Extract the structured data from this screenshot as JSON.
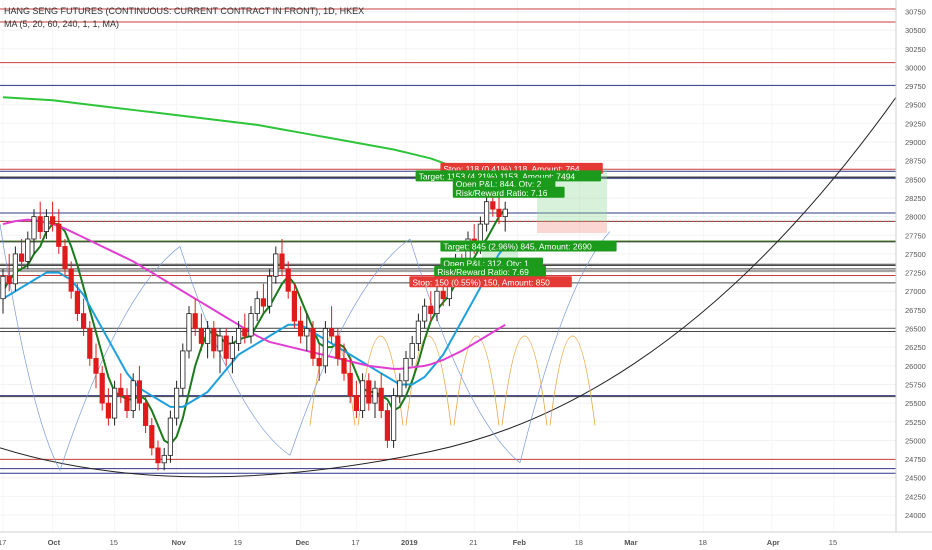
{
  "header": {
    "title": "HANG SENG FUTURES (CONTINUOUS: CURRENT CONTRACT IN FRONT), 1D, HKEX",
    "indicator": "MA (5, 20, 60, 240, 1, 1, MA)"
  },
  "chart_data": {
    "type": "candlestick",
    "ylim": [
      23800,
      30900
    ],
    "y_ticks": [
      24000,
      24250,
      24500,
      24750,
      25000,
      25250,
      25500,
      25750,
      26000,
      26250,
      26500,
      26750,
      27000,
      27250,
      27500,
      27750,
      28000,
      28250,
      28500,
      28750,
      29000,
      29250,
      29500,
      29750,
      30000,
      30250,
      30500,
      30750
    ],
    "y_tick_labels": [
      "24000",
      "24250",
      "24500",
      "24750",
      "25000",
      "25250",
      "25500",
      "25750",
      "26000",
      "26250",
      "26500",
      "26750",
      "27000",
      "27250",
      "27500",
      "27750",
      "28000",
      "28250",
      "28500",
      "28750",
      "29000",
      "29250",
      "29500",
      "29750",
      "30000",
      "30250",
      "30500",
      "30750"
    ],
    "x_labels": [
      "17",
      "Oct",
      "15",
      "Nov",
      "19",
      "Dec",
      "17",
      "2019",
      "21",
      "Feb",
      "18",
      "Mar",
      "18",
      "Apr",
      "15"
    ],
    "x_label_bars": [
      0,
      8,
      18,
      28,
      38,
      48,
      57,
      65,
      76,
      83,
      93,
      101,
      113,
      124,
      134
    ],
    "x_bold_labels": [
      "Oct",
      "Nov",
      "Dec",
      "2019",
      "Feb",
      "Mar",
      "Apr"
    ],
    "candles": [
      {
        "o": 26900,
        "h": 27300,
        "l": 26700,
        "c": 27200
      },
      {
        "o": 27200,
        "h": 27500,
        "l": 27000,
        "c": 27100
      },
      {
        "o": 27100,
        "h": 27600,
        "l": 27000,
        "c": 27500
      },
      {
        "o": 27500,
        "h": 27700,
        "l": 27300,
        "c": 27400
      },
      {
        "o": 27400,
        "h": 27800,
        "l": 27300,
        "c": 27700
      },
      {
        "o": 27700,
        "h": 28100,
        "l": 27500,
        "c": 28000
      },
      {
        "o": 28000,
        "h": 28200,
        "l": 27700,
        "c": 27800
      },
      {
        "o": 27800,
        "h": 28100,
        "l": 27700,
        "c": 28000
      },
      {
        "o": 28000,
        "h": 28200,
        "l": 27800,
        "c": 27900
      },
      {
        "o": 27900,
        "h": 28100,
        "l": 27500,
        "c": 27600
      },
      {
        "o": 27600,
        "h": 27700,
        "l": 27200,
        "c": 27300
      },
      {
        "o": 27300,
        "h": 27400,
        "l": 26900,
        "c": 27000
      },
      {
        "o": 27000,
        "h": 27100,
        "l": 26600,
        "c": 26700
      },
      {
        "o": 26700,
        "h": 26900,
        "l": 26400,
        "c": 26500
      },
      {
        "o": 26500,
        "h": 26600,
        "l": 26000,
        "c": 26100
      },
      {
        "o": 26100,
        "h": 26300,
        "l": 25700,
        "c": 25900
      },
      {
        "o": 25900,
        "h": 26000,
        "l": 25400,
        "c": 25500
      },
      {
        "o": 25500,
        "h": 25700,
        "l": 25200,
        "c": 25300
      },
      {
        "o": 25300,
        "h": 25800,
        "l": 25200,
        "c": 25700
      },
      {
        "o": 25700,
        "h": 25900,
        "l": 25500,
        "c": 25600
      },
      {
        "o": 25600,
        "h": 25700,
        "l": 25300,
        "c": 25400
      },
      {
        "o": 25400,
        "h": 25900,
        "l": 25300,
        "c": 25800
      },
      {
        "o": 25800,
        "h": 26000,
        "l": 25400,
        "c": 25500
      },
      {
        "o": 25500,
        "h": 25600,
        "l": 25100,
        "c": 25200
      },
      {
        "o": 25200,
        "h": 25300,
        "l": 24800,
        "c": 24900
      },
      {
        "o": 24900,
        "h": 25000,
        "l": 24600,
        "c": 24700
      },
      {
        "o": 24700,
        "h": 24900,
        "l": 24600,
        "c": 24800
      },
      {
        "o": 24800,
        "h": 25400,
        "l": 24700,
        "c": 25300
      },
      {
        "o": 25300,
        "h": 25800,
        "l": 25200,
        "c": 25700
      },
      {
        "o": 25700,
        "h": 26300,
        "l": 25600,
        "c": 26200
      },
      {
        "o": 26200,
        "h": 26800,
        "l": 26100,
        "c": 26700
      },
      {
        "o": 26700,
        "h": 26900,
        "l": 26400,
        "c": 26500
      },
      {
        "o": 26500,
        "h": 26700,
        "l": 26200,
        "c": 26300
      },
      {
        "o": 26300,
        "h": 26600,
        "l": 26100,
        "c": 26500
      },
      {
        "o": 26500,
        "h": 26600,
        "l": 26100,
        "c": 26200
      },
      {
        "o": 26200,
        "h": 26500,
        "l": 25900,
        "c": 26400
      },
      {
        "o": 26400,
        "h": 26500,
        "l": 26000,
        "c": 26100
      },
      {
        "o": 26100,
        "h": 26400,
        "l": 25900,
        "c": 26300
      },
      {
        "o": 26300,
        "h": 26600,
        "l": 26200,
        "c": 26500
      },
      {
        "o": 26500,
        "h": 26700,
        "l": 26300,
        "c": 26400
      },
      {
        "o": 26400,
        "h": 26800,
        "l": 26300,
        "c": 26700
      },
      {
        "o": 26700,
        "h": 27000,
        "l": 26600,
        "c": 26900
      },
      {
        "o": 26900,
        "h": 27100,
        "l": 26700,
        "c": 26800
      },
      {
        "o": 26800,
        "h": 27300,
        "l": 26700,
        "c": 27200
      },
      {
        "o": 27200,
        "h": 27600,
        "l": 27100,
        "c": 27500
      },
      {
        "o": 27500,
        "h": 27700,
        "l": 27200,
        "c": 27300
      },
      {
        "o": 27300,
        "h": 27400,
        "l": 26900,
        "c": 27000
      },
      {
        "o": 27000,
        "h": 27100,
        "l": 26500,
        "c": 26600
      },
      {
        "o": 26600,
        "h": 26800,
        "l": 26300,
        "c": 26400
      },
      {
        "o": 26400,
        "h": 26700,
        "l": 26200,
        "c": 26500
      },
      {
        "o": 26500,
        "h": 26600,
        "l": 26000,
        "c": 26100
      },
      {
        "o": 26100,
        "h": 26300,
        "l": 25800,
        "c": 26000
      },
      {
        "o": 26000,
        "h": 26600,
        "l": 25900,
        "c": 26500
      },
      {
        "o": 26500,
        "h": 26800,
        "l": 26300,
        "c": 26400
      },
      {
        "o": 26400,
        "h": 26500,
        "l": 26000,
        "c": 26100
      },
      {
        "o": 26100,
        "h": 26300,
        "l": 25800,
        "c": 25900
      },
      {
        "o": 25900,
        "h": 26100,
        "l": 25500,
        "c": 25600
      },
      {
        "o": 25600,
        "h": 25800,
        "l": 25300,
        "c": 25400
      },
      {
        "o": 25400,
        "h": 25900,
        "l": 25300,
        "c": 25800
      },
      {
        "o": 25800,
        "h": 25900,
        "l": 25400,
        "c": 25500
      },
      {
        "o": 25500,
        "h": 25800,
        "l": 25300,
        "c": 25700
      },
      {
        "o": 25700,
        "h": 25900,
        "l": 25300,
        "c": 25400
      },
      {
        "o": 25400,
        "h": 25500,
        "l": 24900,
        "c": 25000
      },
      {
        "o": 25000,
        "h": 25700,
        "l": 24900,
        "c": 25600
      },
      {
        "o": 25600,
        "h": 25900,
        "l": 25500,
        "c": 25800
      },
      {
        "o": 25800,
        "h": 26200,
        "l": 25700,
        "c": 26100
      },
      {
        "o": 26100,
        "h": 26400,
        "l": 26000,
        "c": 26300
      },
      {
        "o": 26300,
        "h": 26700,
        "l": 26200,
        "c": 26600
      },
      {
        "o": 26600,
        "h": 26900,
        "l": 26500,
        "c": 26800
      },
      {
        "o": 26800,
        "h": 27000,
        "l": 26600,
        "c": 26700
      },
      {
        "o": 26700,
        "h": 27100,
        "l": 26600,
        "c": 27000
      },
      {
        "o": 27000,
        "h": 27200,
        "l": 26800,
        "c": 26900
      },
      {
        "o": 26900,
        "h": 27300,
        "l": 26800,
        "c": 27200
      },
      {
        "o": 27200,
        "h": 27500,
        "l": 27100,
        "c": 27400
      },
      {
        "o": 27400,
        "h": 27500,
        "l": 27100,
        "c": 27300
      },
      {
        "o": 27300,
        "h": 27800,
        "l": 27200,
        "c": 27700
      },
      {
        "o": 27700,
        "h": 27900,
        "l": 27500,
        "c": 27600
      },
      {
        "o": 27600,
        "h": 28000,
        "l": 27500,
        "c": 27900
      },
      {
        "o": 27900,
        "h": 28300,
        "l": 27800,
        "c": 28200
      },
      {
        "o": 28200,
        "h": 28500,
        "l": 28000,
        "c": 28100
      },
      {
        "o": 28100,
        "h": 28300,
        "l": 27900,
        "c": 28000
      },
      {
        "o": 28000,
        "h": 28200,
        "l": 27800,
        "c": 28100
      }
    ],
    "series": [
      {
        "name": "MA 5",
        "color": "#1b7a1b",
        "values": [
          27000,
          27150,
          27250,
          27300,
          27350,
          27500,
          27600,
          27800,
          27900,
          27900,
          27800,
          27600,
          27350,
          27050,
          26750,
          26450,
          26150,
          25850,
          25650,
          25600,
          25550,
          25550,
          25600,
          25550,
          25400,
          25200,
          25000,
          24950,
          25050,
          25300,
          25650,
          26000,
          26250,
          26450,
          26450,
          26380,
          26300,
          26300,
          26350,
          26380,
          26400,
          26550,
          26700,
          26800,
          26950,
          27100,
          27200,
          27100,
          26900,
          26700,
          26500,
          26300,
          26250,
          26250,
          26300,
          26250,
          26100,
          25900,
          25700,
          25650,
          25650,
          25600,
          25550,
          25400,
          25450,
          25600,
          25800,
          26050,
          26350,
          26600,
          26750,
          26850,
          26950,
          27100,
          27250,
          27350,
          27450,
          27600,
          27700,
          27850,
          28000,
          28100
        ]
      },
      {
        "name": "MA 20",
        "color": "#1ea0dc",
        "values": [
          26900,
          26950,
          27000,
          27050,
          27100,
          27150,
          27200,
          27250,
          27250,
          27250,
          27200,
          27150,
          27050,
          26950,
          26800,
          26650,
          26500,
          26350,
          26200,
          26050,
          25900,
          25800,
          25700,
          25650,
          25600,
          25550,
          25500,
          25450,
          25450,
          25450,
          25500,
          25550,
          25600,
          25650,
          25750,
          25850,
          25950,
          26050,
          26150,
          26200,
          26250,
          26300,
          26350,
          26400,
          26450,
          26500,
          26550,
          26550,
          26550,
          26500,
          26450,
          26400,
          26350,
          26300,
          26250,
          26200,
          26150,
          26100,
          26050,
          26000,
          25950,
          25900,
          25850,
          25800,
          25750,
          25750,
          25750,
          25800,
          25850,
          25950,
          26050,
          26150,
          26300,
          26450,
          26600,
          26750,
          26900,
          27050,
          27200,
          27350,
          27500,
          27600
        ]
      },
      {
        "name": "MA 60",
        "color": "#e03ed0",
        "startBar": 0,
        "values": [
          27900,
          27920,
          27940,
          27950,
          27960,
          27950,
          27940,
          27920,
          27900,
          27870,
          27840,
          27800,
          27760,
          27720,
          27680,
          27640,
          27600,
          27560,
          27520,
          27480,
          27440,
          27400,
          27350,
          27300,
          27250,
          27200,
          27150,
          27100,
          27050,
          27000,
          26950,
          26900,
          26850,
          26800,
          26750,
          26700,
          26650,
          26600,
          26550,
          26500,
          26450,
          26400,
          26360,
          26320,
          26300,
          26280,
          26260,
          26240,
          26220,
          26200,
          26180,
          26160,
          26140,
          26120,
          26100,
          26080,
          26060,
          26040,
          26020,
          26000,
          25990,
          25980,
          25970,
          25960,
          25960,
          25970,
          25980,
          25990,
          26000,
          26020,
          26050,
          26080,
          26120,
          26160,
          26200,
          26250,
          26300,
          26350,
          26400,
          26450,
          26500,
          26550
        ]
      },
      {
        "name": "MA 240",
        "color": "#2ec43a",
        "values": [
          29600,
          29595,
          29590,
          29585,
          29580,
          29575,
          29570,
          29565,
          29560,
          29550,
          29540,
          29530,
          29520,
          29510,
          29500,
          29490,
          29480,
          29470,
          29460,
          29450,
          29440,
          29430,
          29420,
          29410,
          29400,
          29390,
          29380,
          29370,
          29360,
          29350,
          29340,
          29330,
          29320,
          29310,
          29300,
          29290,
          29280,
          29270,
          29260,
          29250,
          29240,
          29230,
          29215,
          29200,
          29185,
          29170,
          29155,
          29140,
          29125,
          29110,
          29095,
          29080,
          29065,
          29050,
          29035,
          29020,
          29005,
          28990,
          28975,
          28960,
          28945,
          28930,
          28915,
          28900,
          28880,
          28860,
          28840,
          28820,
          28800,
          28780,
          28750,
          28720,
          28690,
          28660,
          28630,
          28600,
          28570,
          28540,
          28510,
          28480,
          28450,
          28420
        ]
      }
    ],
    "price_levels": [
      {
        "value": 30783,
        "color": "#c62828",
        "label": "30783"
      },
      {
        "value": 30609,
        "color": "#c62828",
        "label": "30609"
      },
      {
        "value": 30065,
        "color": "#c62828",
        "label": "30065"
      },
      {
        "value": 29759,
        "color": "#1a237e",
        "label": "29759"
      },
      {
        "value": 28635,
        "color": "#c62828",
        "label": "28635"
      },
      {
        "value": 28608,
        "color": "#1a237e",
        "label": "28608"
      },
      {
        "value": 28531,
        "color": "#333333",
        "label": "28531"
      },
      {
        "value": 28517,
        "color": "#333333",
        "label": "28517"
      },
      {
        "value": 28514,
        "color": "#1a237e",
        "label": "28514"
      },
      {
        "value": 28049,
        "color": "#1a237e",
        "label": "28049"
      },
      {
        "value": 27936,
        "color": "#333333",
        "label": "27936"
      },
      {
        "value": 27673,
        "color": "#e53935",
        "label": "27673"
      },
      {
        "value": 27672,
        "color": "#1b9a1b",
        "label": "27672"
      },
      {
        "value": 27662,
        "color": "#333333",
        "label": "27662"
      },
      {
        "value": 27361,
        "color": "#333333",
        "label": "27361"
      },
      {
        "value": 27345,
        "color": "#333333",
        "label": "27345"
      },
      {
        "value": 27300,
        "color": "#333333",
        "label": "27300"
      },
      {
        "value": 27271,
        "color": "#333333",
        "label": "27271"
      },
      {
        "value": 27211,
        "color": "#c62828",
        "label": "27211"
      },
      {
        "value": 27112,
        "color": "#333333",
        "label": "27112"
      },
      {
        "value": 26503,
        "color": "#333333",
        "label": "26503"
      },
      {
        "value": 26461,
        "color": "#333333",
        "label": "26461"
      },
      {
        "value": 25601,
        "color": "#1a237e",
        "label": "25601"
      },
      {
        "value": 25588,
        "color": "#333333",
        "label": "25588"
      },
      {
        "value": 24747,
        "color": "#c62828",
        "label": "24747"
      },
      {
        "value": 24622,
        "color": "#1a237e",
        "label": "24622"
      },
      {
        "value": 24561,
        "color": "#1a237e",
        "label": "24561"
      }
    ],
    "annotations": [
      {
        "text": "Stop: 118 (0.41%) 118, Amount: 764",
        "color": "#e53935",
        "price": 28640,
        "bar": 77
      },
      {
        "text": "Target: 1153 (4.21%) 1153, Amount: 7494",
        "color": "#1b9a1b",
        "price": 28540,
        "bar": 73
      },
      {
        "text": "Open P&L: 844, Qty: 2",
        "color": "#1b9a1b",
        "price": 28440,
        "bar": 79
      },
      {
        "text": "Risk/Reward Ratio: 7.16",
        "color": "#1b9a1b",
        "price": 28320,
        "bar": 79
      },
      {
        "text": "Target: 845 (2.96%) 845, Amount: 2690",
        "color": "#1b9a1b",
        "price": 27600,
        "bar": 77
      },
      {
        "text": "Open P&L: 312, Qty: 1",
        "color": "#1b9a1b",
        "price": 27370,
        "bar": 77
      },
      {
        "text": "Risk/Reward Ratio: 7.69",
        "color": "#1b9a1b",
        "price": 27260,
        "bar": 76
      },
      {
        "text": "Stop: 150 (0.55%) 150, Amount: 850",
        "color": "#e53935",
        "price": 27120,
        "bar": 72
      }
    ]
  }
}
